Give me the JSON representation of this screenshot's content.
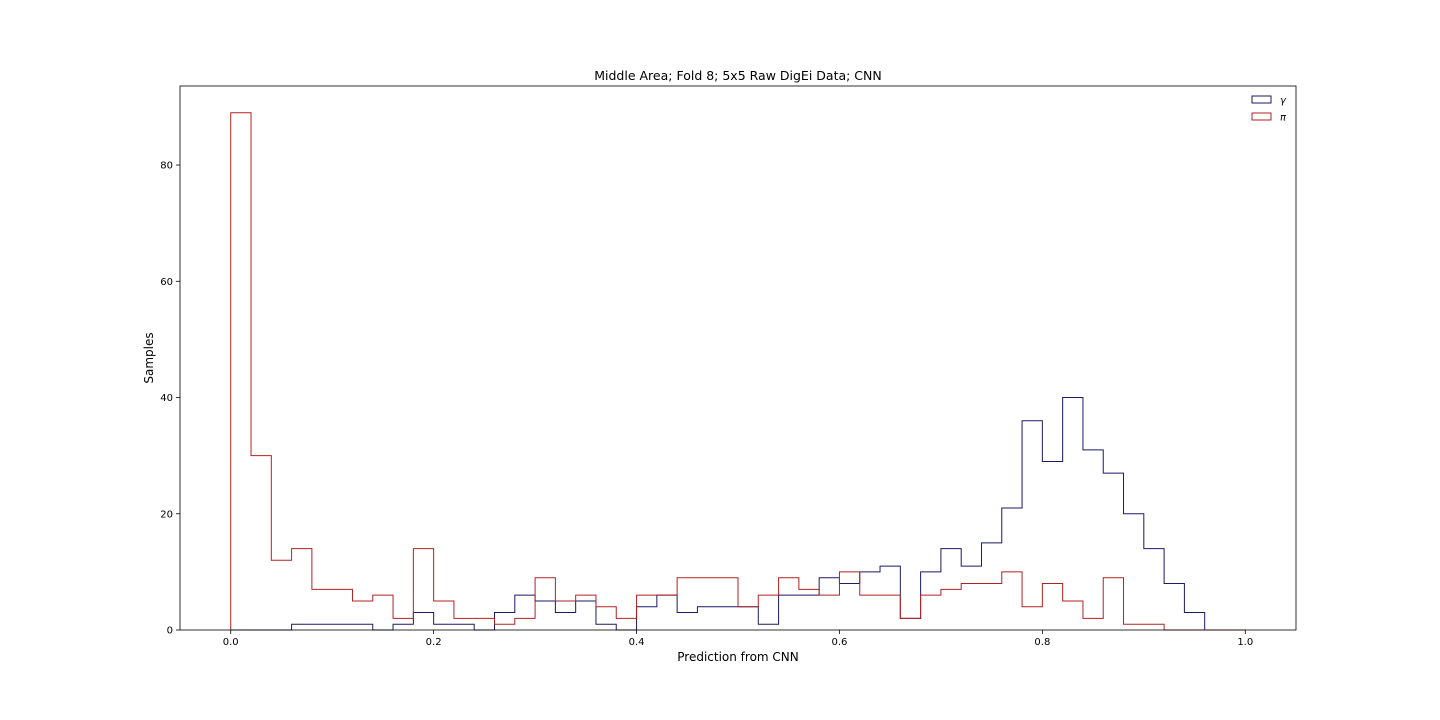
{
  "chart_data": {
    "type": "histogram",
    "title": "Middle Area; Fold 8; 5x5 Raw DigEi Data; CNN",
    "xlabel": "Prediction from CNN",
    "ylabel": "Samples",
    "xlim": [
      -0.05,
      1.05
    ],
    "ylim": [
      0,
      93.6
    ],
    "xticks": [
      0.0,
      0.2,
      0.4,
      0.6,
      0.8,
      1.0
    ],
    "xtick_labels": [
      "0.0",
      "0.2",
      "0.4",
      "0.6",
      "0.8",
      "1.0"
    ],
    "yticks": [
      0,
      20,
      40,
      60,
      80
    ],
    "ytick_labels": [
      "0",
      "20",
      "40",
      "60",
      "80"
    ],
    "grid": false,
    "legend_position": "top-right",
    "series": [
      {
        "name": "γ",
        "color": "#1a1a66",
        "bin_edges": [
          0.0,
          0.02,
          0.04,
          0.06,
          0.08,
          0.1,
          0.12,
          0.14,
          0.16,
          0.18,
          0.2,
          0.22,
          0.24,
          0.26,
          0.28,
          0.3,
          0.32,
          0.34,
          0.36,
          0.38,
          0.4,
          0.42,
          0.44,
          0.46,
          0.48,
          0.5,
          0.52,
          0.54,
          0.56,
          0.58,
          0.6,
          0.62,
          0.64,
          0.66,
          0.68,
          0.7,
          0.72,
          0.74,
          0.76,
          0.78,
          0.8,
          0.82,
          0.84,
          0.86,
          0.88,
          0.9,
          0.92,
          0.94,
          0.96,
          0.98,
          1.0
        ],
        "counts": [
          0,
          0,
          0,
          1,
          1,
          1,
          1,
          0,
          1,
          3,
          1,
          1,
          0,
          3,
          6,
          5,
          3,
          5,
          1,
          0,
          4,
          6,
          3,
          4,
          4,
          4,
          1,
          6,
          6,
          9,
          8,
          10,
          11,
          2,
          10,
          14,
          11,
          15,
          21,
          36,
          29,
          40,
          31,
          27,
          20,
          14,
          8,
          3,
          0,
          0
        ]
      },
      {
        "name": "π",
        "color": "#b22222",
        "bin_edges": [
          0.0,
          0.02,
          0.04,
          0.06,
          0.08,
          0.1,
          0.12,
          0.14,
          0.16,
          0.18,
          0.2,
          0.22,
          0.24,
          0.26,
          0.28,
          0.3,
          0.32,
          0.34,
          0.36,
          0.38,
          0.4,
          0.42,
          0.44,
          0.46,
          0.48,
          0.5,
          0.52,
          0.54,
          0.56,
          0.58,
          0.6,
          0.62,
          0.64,
          0.66,
          0.68,
          0.7,
          0.72,
          0.74,
          0.76,
          0.78,
          0.8,
          0.82,
          0.84,
          0.86,
          0.88,
          0.9,
          0.92,
          0.94,
          0.96,
          0.98,
          1.0
        ],
        "counts": [
          89,
          30,
          12,
          14,
          7,
          7,
          5,
          6,
          2,
          14,
          5,
          2,
          2,
          1,
          2,
          9,
          5,
          6,
          4,
          2,
          6,
          6,
          9,
          9,
          9,
          4,
          6,
          9,
          7,
          6,
          10,
          6,
          6,
          2,
          6,
          7,
          8,
          8,
          10,
          4,
          8,
          5,
          2,
          9,
          1,
          1,
          0,
          0,
          0,
          0
        ]
      }
    ]
  }
}
